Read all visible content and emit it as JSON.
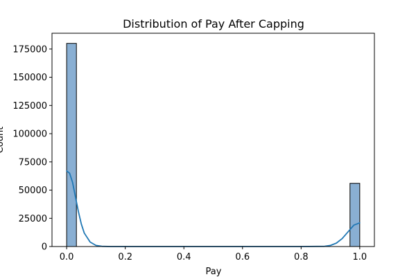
{
  "chart_data": {
    "type": "bar",
    "title": "Distribution of Pay After Capping",
    "xlabel": "Pay",
    "ylabel": "Count",
    "xlim": [
      -0.05,
      1.05
    ],
    "ylim": [
      0,
      189000
    ],
    "x_ticks": [
      0.0,
      0.2,
      0.4,
      0.6,
      0.8,
      1.0
    ],
    "x_tick_labels": [
      "0.0",
      "0.2",
      "0.4",
      "0.6",
      "0.8",
      "1.0"
    ],
    "y_ticks": [
      0,
      25000,
      50000,
      75000,
      100000,
      125000,
      150000,
      175000
    ],
    "y_tick_labels": [
      "0",
      "25000",
      "50000",
      "75000",
      "100000",
      "125000",
      "150000",
      "175000"
    ],
    "bins": [
      {
        "start": 0.0,
        "end": 0.0333,
        "count": 180000
      },
      {
        "start": 0.9667,
        "end": 1.0,
        "count": 56000
      }
    ],
    "kde": {
      "x": [
        0.0,
        0.01,
        0.02,
        0.03,
        0.04,
        0.05,
        0.06,
        0.08,
        0.1,
        0.12,
        0.15,
        0.2,
        0.5,
        0.8,
        0.88,
        0.9,
        0.92,
        0.94,
        0.96,
        0.98,
        1.0
      ],
      "y": [
        67000,
        65000,
        57000,
        44000,
        31000,
        20000,
        12000,
        4000,
        1000,
        200,
        0,
        0,
        0,
        0,
        200,
        1000,
        3000,
        7000,
        13000,
        19000,
        21000
      ]
    },
    "grid": false,
    "colors": {
      "bar_fill": "#89afd3",
      "bar_edge": "#000000",
      "kde_line": "#1f77b4"
    }
  }
}
